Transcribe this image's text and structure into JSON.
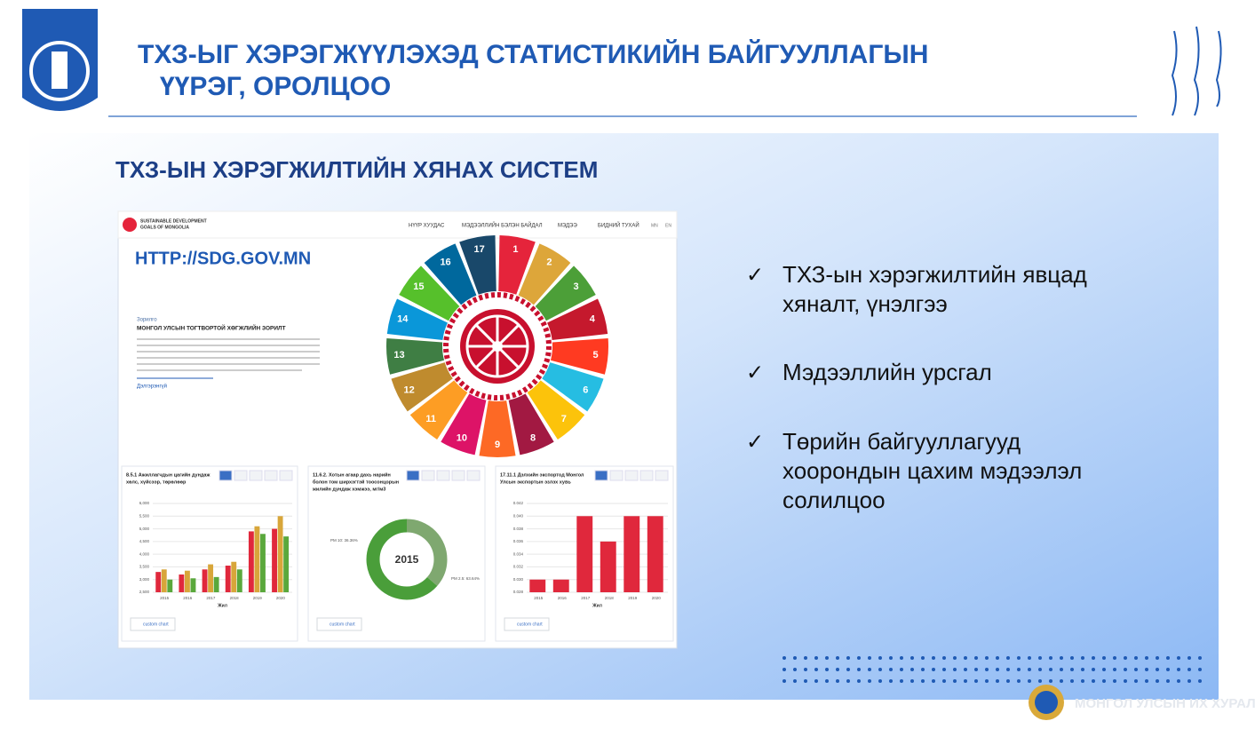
{
  "header": {
    "title_lines": [
      "ТХЗ-ЫГ ХЭРЭГЖҮҮЛЭХЭД СТАТИСТИКИЙН БАЙГУУЛЛАГЫН",
      "ҮҮРЭГ, ОРОЛЦОО"
    ]
  },
  "subtitle": "ТХЗ-ЫН ХЭРЭГЖИЛТИЙН ХЯНАХ СИСТЕМ",
  "site": {
    "logo_lines": [
      "SUSTAINABLE DEVELOPMENT",
      "GOALS OF MONGOLIA"
    ],
    "nav": [
      "НҮҮР ХУУДАС",
      "МЭДЭЭЛЛИЙН БЭЛЭН БАЙДАЛ",
      "МЭДЭЭ",
      "БИДНИЙ ТУХАЙ"
    ],
    "lang": [
      "MN",
      "EN"
    ],
    "url": "HTTP://SDG.GOV.MN",
    "kicker": "Зорилго",
    "heading": "МОНГОЛ УЛСЫН ТОГТВОРТОЙ ХӨГЖЛИЙН ЗОРИЛТ",
    "more": "Дэлгэрэнгүй",
    "goals": [
      "1",
      "2",
      "3",
      "4",
      "5",
      "6",
      "7",
      "8",
      "9",
      "10",
      "11",
      "12",
      "13",
      "14",
      "15",
      "16",
      "17"
    ],
    "goal_colors": [
      "#e5243b",
      "#dda63a",
      "#4c9f38",
      "#c5192d",
      "#ff3a21",
      "#26bde2",
      "#fcc30b",
      "#a21942",
      "#fd6925",
      "#dd1367",
      "#fd9d24",
      "#bf8b2e",
      "#3f7e44",
      "#0a97d9",
      "#56c02b",
      "#00689d",
      "#19486a"
    ],
    "button": "custom chart"
  },
  "chart_data": [
    {
      "type": "bar",
      "title_lines": [
        "8.5.1 Ажиллагчдын цагийн дундаж",
        "хөлс, хүйсээр, төрөлөөр"
      ],
      "x_label": "Жил",
      "categories": [
        "2015",
        "2016",
        "2017",
        "2018",
        "2019",
        "2020"
      ],
      "series": [
        {
          "color": "#e0283c",
          "values": [
            3300,
            3200,
            3400,
            3550,
            4900,
            5000
          ]
        },
        {
          "color": "#d8a63a",
          "values": [
            3400,
            3350,
            3600,
            3700,
            5100,
            5500
          ]
        },
        {
          "color": "#5aa83c",
          "values": [
            3000,
            3050,
            3100,
            3400,
            4800,
            4700
          ]
        }
      ],
      "ylim": [
        2500,
        6000
      ],
      "yticks": [
        {
          "value": 2500,
          "label": "2,500"
        },
        {
          "value": 3000,
          "label": "3,000"
        },
        {
          "value": 3500,
          "label": "3,500"
        },
        {
          "value": 4000,
          "label": "4,000"
        },
        {
          "value": 4500,
          "label": "4,500"
        },
        {
          "value": 5000,
          "label": "5,000"
        },
        {
          "value": 5500,
          "label": "5,500"
        },
        {
          "value": 6000,
          "label": "6,000"
        }
      ]
    },
    {
      "type": "pie",
      "title_lines": [
        "11.6.2. Хотын агаар дахь нарийн",
        "болон том ширхэгтэй тоосонцорын",
        "жилийн дундаж хэмжээ, мг/м3"
      ],
      "center_label": "2015",
      "categories": [
        "PM 10",
        "PM 2.5"
      ],
      "values": [
        36.36,
        63.64
      ],
      "value_labels": [
        "PM 10: 36.36%",
        "PM 2.5: 63.64%"
      ],
      "colors": [
        "#7fa870",
        "#4a9e3a"
      ]
    },
    {
      "type": "bar",
      "title_lines": [
        "17.11.1 Дэлхийн экспортод Монгол",
        "Улсын экспортын эзлэх хувь"
      ],
      "x_label": "Жил",
      "categories": [
        "2015",
        "2016",
        "2017",
        "2018",
        "2019",
        "2020"
      ],
      "series": [
        {
          "color": "#e0283c",
          "values": [
            0.03,
            0.03,
            0.04,
            0.036,
            0.04,
            0.04
          ]
        }
      ],
      "ylim": [
        0.028,
        0.042
      ],
      "yticks": [
        {
          "value": 0.028,
          "label": "0.028"
        },
        {
          "value": 0.03,
          "label": "0.030"
        },
        {
          "value": 0.032,
          "label": "0.032"
        },
        {
          "value": 0.034,
          "label": "0.034"
        },
        {
          "value": 0.036,
          "label": "0.036"
        },
        {
          "value": 0.038,
          "label": "0.038"
        },
        {
          "value": 0.04,
          "label": "0.040"
        },
        {
          "value": 0.042,
          "label": "0.042"
        }
      ]
    }
  ],
  "bullets": [
    [
      "ТХЗ-ын хэрэгжилтийн явцад",
      "хяналт, үнэлгээ"
    ],
    [
      "Мэдээллийн урсгал"
    ],
    [
      "Төрийн байгууллагууд",
      "хоорондын цахим мэдээлэл",
      "солилцоо"
    ]
  ],
  "footer": "МОНГОЛ УЛСЫН ИХ ХУРАЛ"
}
